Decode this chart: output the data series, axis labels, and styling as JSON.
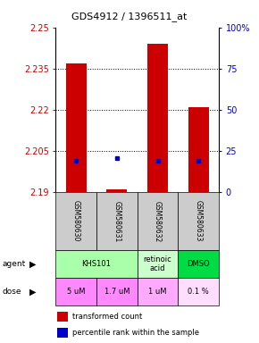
{
  "title": "GDS4912 / 1396511_at",
  "samples": [
    "GSM580630",
    "GSM580631",
    "GSM580632",
    "GSM580633"
  ],
  "bar_bottoms": [
    2.19,
    2.19,
    2.19,
    2.19
  ],
  "bar_tops": [
    2.237,
    2.191,
    2.244,
    2.221
  ],
  "percentile_values": [
    2.2015,
    2.2025,
    2.2015,
    2.2015
  ],
  "ylim": [
    2.19,
    2.25
  ],
  "yticks": [
    2.19,
    2.205,
    2.22,
    2.235,
    2.25
  ],
  "ytick_labels": [
    "2.19",
    "2.205",
    "2.22",
    "2.235",
    "2.25"
  ],
  "right_yticks": [
    0,
    25,
    50,
    75,
    100
  ],
  "right_ytick_labels": [
    "0",
    "25",
    "50",
    "75",
    "100%"
  ],
  "bar_color": "#cc0000",
  "percentile_color": "#0000cc",
  "grid_color": "#000000",
  "merged_agents": [
    {
      "start": 0,
      "end": 2,
      "label": "KHS101",
      "color": "#aaffaa"
    },
    {
      "start": 2,
      "end": 3,
      "label": "retinoic\nacid",
      "color": "#ccffcc"
    },
    {
      "start": 3,
      "end": 4,
      "label": "DMSO",
      "color": "#00dd44"
    }
  ],
  "doses": [
    "5 uM",
    "1.7 uM",
    "1 uM",
    "0.1 %"
  ],
  "dose_colors": [
    "#ff88ff",
    "#ff88ff",
    "#ffaaff",
    "#ffccff"
  ],
  "legend_red": "transformed count",
  "legend_blue": "percentile rank within the sample",
  "left_axis_color": "#cc0000",
  "right_axis_color": "#0000cc",
  "sample_bg_color": "#cccccc",
  "bar_width": 0.5
}
